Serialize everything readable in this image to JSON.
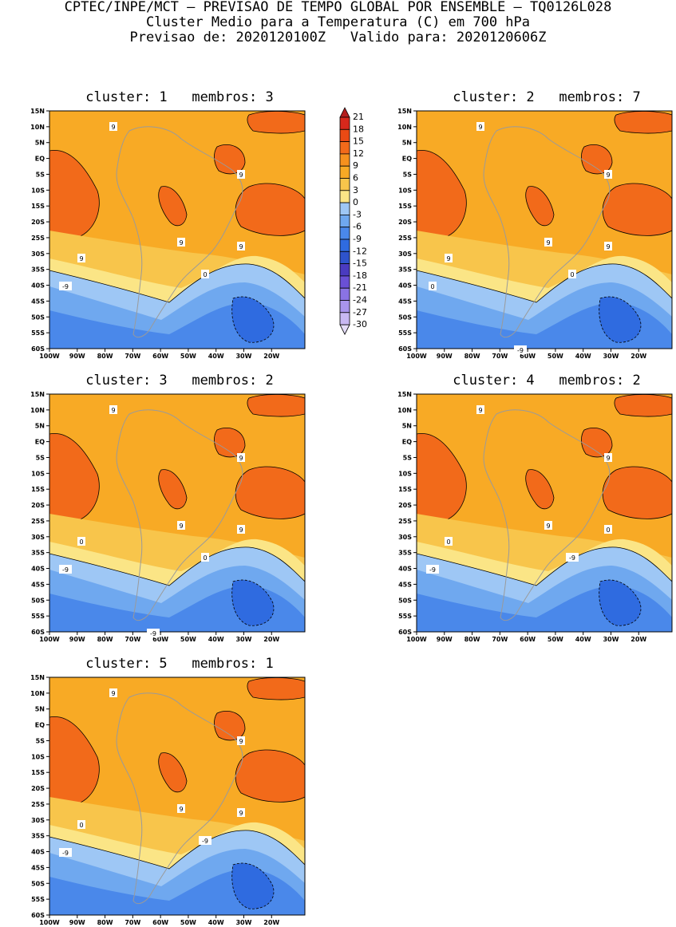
{
  "header": {
    "line1": "CPTEC/INPE/MCT – PREVISAO DE TEMPO GLOBAL POR ENSEMBLE – TQ0126L028",
    "line2": "Cluster Medio para a Temperatura (C) em 700 hPa",
    "line3": "Previsao de: 2020120100Z   Valido para: 2020120606Z"
  },
  "axes": {
    "lat_ticks": [
      "15N",
      "10N",
      "5N",
      "EQ",
      "5S",
      "10S",
      "15S",
      "20S",
      "25S",
      "30S",
      "35S",
      "40S",
      "45S",
      "50S",
      "55S",
      "60S"
    ],
    "lon_ticks": [
      "100W",
      "90W",
      "80W",
      "70W",
      "60W",
      "50W",
      "40W",
      "30W",
      "20W"
    ]
  },
  "colorbar": {
    "labels": [
      "21",
      "18",
      "15",
      "12",
      "9",
      "6",
      "3",
      "0",
      "-3",
      "-6",
      "-9",
      "-12",
      "-15",
      "-18",
      "-21",
      "-24",
      "-27",
      "-30"
    ],
    "colors": [
      "#b41d1d",
      "#d8281c",
      "#ea4a14",
      "#f26a1a",
      "#f6911e",
      "#f8aa25",
      "#f8c54b",
      "#fbe586",
      "#9ec7f5",
      "#6fa8ef",
      "#4a88ea",
      "#2f6be0",
      "#2e53cc",
      "#4a3bc0",
      "#6a50d6",
      "#8a73e4",
      "#a995ec",
      "#c8b8f2",
      "#e4dcf7"
    ]
  },
  "panels": [
    {
      "title": "cluster: 1   membros: 3",
      "labels": [
        "9",
        "9",
        "9",
        "9",
        "9",
        "0",
        "-9"
      ]
    },
    {
      "title": "cluster: 2   membros: 7",
      "labels": [
        "9",
        "9",
        "9",
        "9",
        "9",
        "0",
        "0",
        "-9"
      ]
    },
    {
      "title": "cluster: 3   membros: 2",
      "labels": [
        "9",
        "9",
        "9",
        "9",
        "0",
        "0",
        "-9",
        "-9"
      ]
    },
    {
      "title": "cluster: 4   membros: 2",
      "labels": [
        "9",
        "9",
        "9",
        "0",
        "0",
        "-9",
        "-9"
      ]
    },
    {
      "title": "cluster: 5   membros: 1",
      "labels": [
        "9",
        "9",
        "9",
        "9",
        "0",
        "-9",
        "-9"
      ]
    }
  ]
}
